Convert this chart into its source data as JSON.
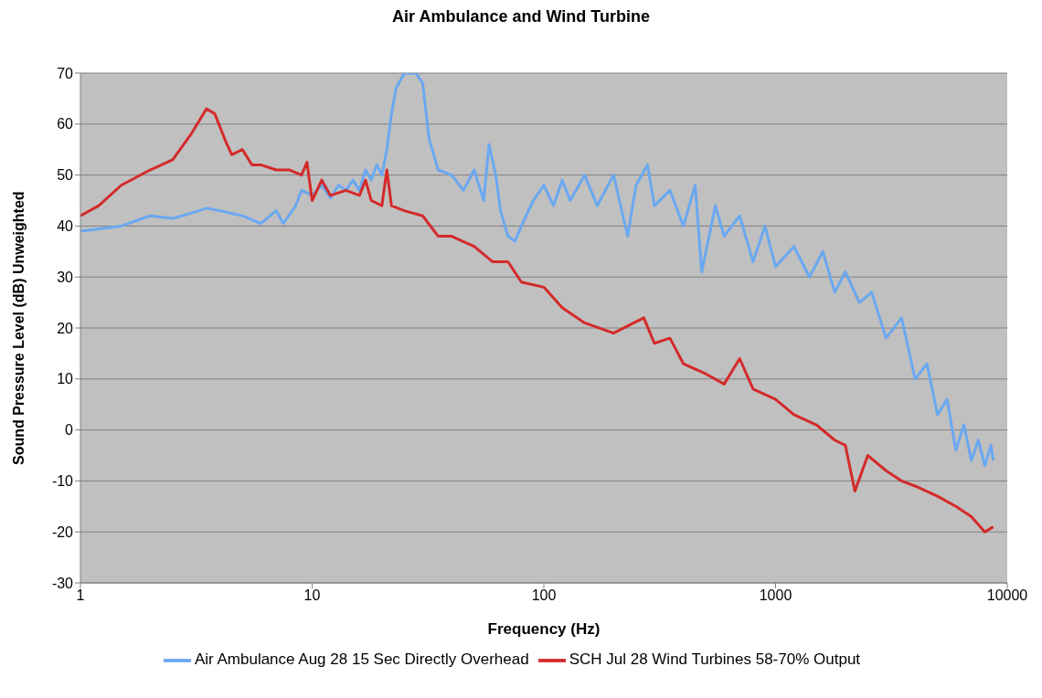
{
  "chart_data": {
    "type": "line",
    "title": "Air Ambulance and Wind Turbine",
    "xlabel": "Frequency (Hz)",
    "ylabel": "Sound Pressure Level (dB) Unweighted",
    "log": "x",
    "xlim": [
      1,
      10000
    ],
    "xticks": [
      1,
      10,
      100,
      1000,
      10000
    ],
    "ylim": [
      -30,
      70
    ],
    "yticks": [
      -30,
      -20,
      -10,
      0,
      10,
      20,
      30,
      40,
      50,
      60,
      70
    ],
    "grid": "y",
    "legend": "bottom",
    "marker": "none",
    "line_style": "solid",
    "series": [
      {
        "name": "Air Ambulance Aug 28 15 Sec Directly Overhead",
        "color": "#6aa8f0",
        "x": [
          1,
          1.5,
          2,
          2.5,
          3,
          3.5,
          4,
          5,
          6,
          7,
          7.5,
          8.5,
          9,
          10,
          11,
          12,
          13,
          14,
          15,
          16,
          17,
          18,
          19,
          20,
          21,
          22,
          23,
          25,
          28,
          30,
          32,
          35,
          40,
          45,
          50,
          55,
          58,
          62,
          65,
          70,
          75,
          80,
          90,
          100,
          110,
          120,
          130,
          150,
          170,
          200,
          230,
          250,
          280,
          300,
          350,
          400,
          450,
          480,
          550,
          600,
          700,
          800,
          900,
          1000,
          1200,
          1400,
          1600,
          1800,
          2000,
          2300,
          2600,
          3000,
          3500,
          4000,
          4500,
          5000,
          5500,
          6000,
          6500,
          7000,
          7500,
          8000,
          8500,
          8700
        ],
        "values": [
          39,
          40,
          42,
          41.5,
          42.5,
          43.5,
          43,
          42,
          40.5,
          43,
          40.5,
          44,
          47,
          46,
          48,
          45.5,
          48,
          47,
          49,
          47,
          51,
          49,
          52,
          50,
          55,
          62,
          67,
          70,
          70,
          68,
          57,
          51,
          50,
          47,
          51,
          45,
          56,
          50,
          43,
          38,
          37,
          40,
          45,
          48,
          44,
          49,
          45,
          50,
          44,
          50,
          38,
          48,
          52,
          44,
          47,
          40,
          48,
          31,
          44,
          38,
          42,
          33,
          40,
          32,
          36,
          30,
          35,
          27,
          31,
          25,
          27,
          18,
          22,
          10,
          13,
          3,
          6,
          -4,
          1,
          -6,
          -2,
          -7,
          -3,
          -6
        ]
      },
      {
        "name": "SCH Jul 28 Wind Turbines 58-70% Output",
        "color": "#d42a2a",
        "x": [
          1,
          1.2,
          1.5,
          2,
          2.5,
          3,
          3.5,
          3.8,
          4.2,
          4.5,
          5,
          5.5,
          6,
          7,
          8,
          9,
          9.5,
          10,
          11,
          12,
          14,
          16,
          17,
          18,
          20,
          21,
          22,
          25,
          30,
          35,
          40,
          50,
          60,
          70,
          80,
          100,
          120,
          150,
          200,
          270,
          300,
          350,
          400,
          500,
          600,
          700,
          800,
          1000,
          1200,
          1500,
          1800,
          2000,
          2200,
          2500,
          3000,
          3500,
          4000,
          5000,
          6000,
          7000,
          8000,
          8700
        ],
        "values": [
          42,
          44,
          48,
          51,
          53,
          58,
          63,
          62,
          57,
          54,
          55,
          52,
          52,
          51,
          51,
          50,
          52.5,
          45,
          49,
          46,
          47,
          46,
          49,
          45,
          44,
          51,
          44,
          43,
          42,
          38,
          38,
          36,
          33,
          33,
          29,
          28,
          24,
          21,
          19,
          22,
          17,
          18,
          13,
          11,
          9,
          14,
          8,
          6,
          3,
          1,
          -2,
          -3,
          -12,
          -5,
          -8,
          -10,
          -11,
          -13,
          -15,
          -17,
          -20,
          -19
        ]
      }
    ]
  }
}
